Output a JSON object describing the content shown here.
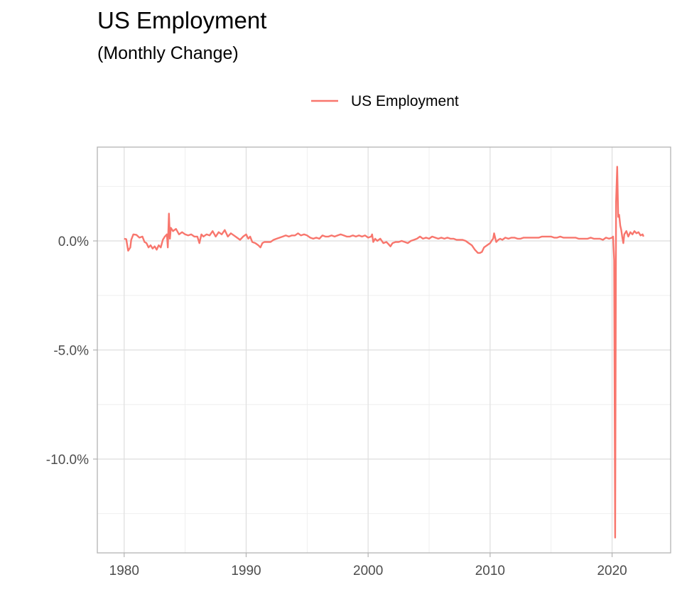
{
  "chart_data": {
    "type": "line",
    "title": "US Employment",
    "subtitle": "(Monthly Change)",
    "xlabel": "",
    "ylabel": "",
    "xlim": [
      1977.8,
      2024.8
    ],
    "ylim": [
      -14.3,
      4.3
    ],
    "x_ticks": [
      {
        "value": 1980,
        "label": "1980"
      },
      {
        "value": 1990,
        "label": "1990"
      },
      {
        "value": 2000,
        "label": "2000"
      },
      {
        "value": 2010,
        "label": "2010"
      },
      {
        "value": 2020,
        "label": "2020"
      }
    ],
    "y_ticks": [
      {
        "value": 0,
        "label": "0.0%"
      },
      {
        "value": -5,
        "label": "-5.0%"
      },
      {
        "value": -10,
        "label": "-10.0%"
      }
    ],
    "x_minor_ticks": [
      1985,
      1995,
      2005,
      2015
    ],
    "y_minor_ticks": [
      2.5,
      -2.5,
      -7.5,
      -12.5
    ],
    "grid": true,
    "legend_position": "top",
    "series": [
      {
        "name": "US Employment",
        "color": "#F8766D",
        "points": [
          [
            1980.0,
            0.1
          ],
          [
            1980.17,
            0.08
          ],
          [
            1980.33,
            -0.45
          ],
          [
            1980.5,
            -0.3
          ],
          [
            1980.58,
            0.05
          ],
          [
            1980.75,
            0.3
          ],
          [
            1981.0,
            0.28
          ],
          [
            1981.25,
            0.15
          ],
          [
            1981.5,
            0.2
          ],
          [
            1981.67,
            -0.05
          ],
          [
            1981.83,
            -0.1
          ],
          [
            1982.0,
            -0.3
          ],
          [
            1982.17,
            -0.2
          ],
          [
            1982.33,
            -0.35
          ],
          [
            1982.5,
            -0.25
          ],
          [
            1982.67,
            -0.4
          ],
          [
            1982.83,
            -0.2
          ],
          [
            1983.0,
            -0.3
          ],
          [
            1983.17,
            0.05
          ],
          [
            1983.33,
            0.2
          ],
          [
            1983.5,
            0.3
          ],
          [
            1983.58,
            -0.3
          ],
          [
            1983.67,
            1.25
          ],
          [
            1983.75,
            0.1
          ],
          [
            1983.83,
            0.6
          ],
          [
            1984.0,
            0.45
          ],
          [
            1984.25,
            0.55
          ],
          [
            1984.5,
            0.3
          ],
          [
            1984.75,
            0.4
          ],
          [
            1985.0,
            0.3
          ],
          [
            1985.25,
            0.25
          ],
          [
            1985.5,
            0.3
          ],
          [
            1985.75,
            0.2
          ],
          [
            1986.0,
            0.2
          ],
          [
            1986.17,
            -0.1
          ],
          [
            1986.33,
            0.3
          ],
          [
            1986.5,
            0.2
          ],
          [
            1986.75,
            0.3
          ],
          [
            1987.0,
            0.25
          ],
          [
            1987.25,
            0.45
          ],
          [
            1987.5,
            0.2
          ],
          [
            1987.75,
            0.4
          ],
          [
            1988.0,
            0.3
          ],
          [
            1988.25,
            0.5
          ],
          [
            1988.5,
            0.2
          ],
          [
            1988.75,
            0.35
          ],
          [
            1989.0,
            0.25
          ],
          [
            1989.25,
            0.15
          ],
          [
            1989.5,
            0.05
          ],
          [
            1989.75,
            0.2
          ],
          [
            1990.0,
            0.3
          ],
          [
            1990.17,
            0.1
          ],
          [
            1990.33,
            0.2
          ],
          [
            1990.5,
            -0.05
          ],
          [
            1990.75,
            -0.1
          ],
          [
            1991.0,
            -0.2
          ],
          [
            1991.17,
            -0.3
          ],
          [
            1991.33,
            -0.1
          ],
          [
            1991.5,
            -0.05
          ],
          [
            1991.75,
            -0.05
          ],
          [
            1992.0,
            -0.05
          ],
          [
            1992.25,
            0.05
          ],
          [
            1992.5,
            0.1
          ],
          [
            1992.75,
            0.15
          ],
          [
            1993.0,
            0.2
          ],
          [
            1993.25,
            0.25
          ],
          [
            1993.5,
            0.2
          ],
          [
            1993.75,
            0.25
          ],
          [
            1994.0,
            0.25
          ],
          [
            1994.25,
            0.35
          ],
          [
            1994.5,
            0.25
          ],
          [
            1994.75,
            0.3
          ],
          [
            1995.0,
            0.25
          ],
          [
            1995.25,
            0.15
          ],
          [
            1995.5,
            0.1
          ],
          [
            1995.75,
            0.15
          ],
          [
            1996.0,
            0.1
          ],
          [
            1996.25,
            0.25
          ],
          [
            1996.5,
            0.2
          ],
          [
            1996.75,
            0.2
          ],
          [
            1997.0,
            0.25
          ],
          [
            1997.25,
            0.2
          ],
          [
            1997.5,
            0.25
          ],
          [
            1997.75,
            0.3
          ],
          [
            1998.0,
            0.25
          ],
          [
            1998.25,
            0.2
          ],
          [
            1998.5,
            0.2
          ],
          [
            1998.75,
            0.25
          ],
          [
            1999.0,
            0.2
          ],
          [
            1999.25,
            0.25
          ],
          [
            1999.5,
            0.2
          ],
          [
            1999.75,
            0.25
          ],
          [
            2000.0,
            0.15
          ],
          [
            2000.25,
            0.2
          ],
          [
            2000.33,
            0.3
          ],
          [
            2000.42,
            -0.05
          ],
          [
            2000.58,
            0.1
          ],
          [
            2000.75,
            0.0
          ],
          [
            2001.0,
            0.1
          ],
          [
            2001.25,
            -0.1
          ],
          [
            2001.5,
            -0.05
          ],
          [
            2001.67,
            -0.15
          ],
          [
            2001.83,
            -0.25
          ],
          [
            2002.0,
            -0.1
          ],
          [
            2002.25,
            -0.05
          ],
          [
            2002.5,
            -0.05
          ],
          [
            2002.75,
            0.0
          ],
          [
            2003.0,
            -0.05
          ],
          [
            2003.25,
            -0.1
          ],
          [
            2003.5,
            0.0
          ],
          [
            2003.75,
            0.05
          ],
          [
            2004.0,
            0.1
          ],
          [
            2004.25,
            0.2
          ],
          [
            2004.5,
            0.1
          ],
          [
            2004.75,
            0.15
          ],
          [
            2005.0,
            0.1
          ],
          [
            2005.25,
            0.2
          ],
          [
            2005.5,
            0.15
          ],
          [
            2005.75,
            0.1
          ],
          [
            2006.0,
            0.15
          ],
          [
            2006.25,
            0.1
          ],
          [
            2006.5,
            0.15
          ],
          [
            2006.75,
            0.1
          ],
          [
            2007.0,
            0.1
          ],
          [
            2007.25,
            0.05
          ],
          [
            2007.5,
            0.05
          ],
          [
            2007.75,
            0.05
          ],
          [
            2008.0,
            0.0
          ],
          [
            2008.25,
            -0.1
          ],
          [
            2008.5,
            -0.2
          ],
          [
            2008.75,
            -0.4
          ],
          [
            2009.0,
            -0.55
          ],
          [
            2009.17,
            -0.55
          ],
          [
            2009.33,
            -0.5
          ],
          [
            2009.5,
            -0.3
          ],
          [
            2009.75,
            -0.2
          ],
          [
            2010.0,
            -0.1
          ],
          [
            2010.17,
            0.05
          ],
          [
            2010.25,
            0.1
          ],
          [
            2010.33,
            0.35
          ],
          [
            2010.5,
            -0.05
          ],
          [
            2010.67,
            0.05
          ],
          [
            2010.83,
            0.1
          ],
          [
            2011.0,
            0.05
          ],
          [
            2011.25,
            0.15
          ],
          [
            2011.5,
            0.1
          ],
          [
            2011.75,
            0.15
          ],
          [
            2012.0,
            0.15
          ],
          [
            2012.25,
            0.1
          ],
          [
            2012.5,
            0.1
          ],
          [
            2012.75,
            0.15
          ],
          [
            2013.0,
            0.15
          ],
          [
            2013.25,
            0.15
          ],
          [
            2013.5,
            0.15
          ],
          [
            2013.75,
            0.15
          ],
          [
            2014.0,
            0.15
          ],
          [
            2014.25,
            0.2
          ],
          [
            2014.5,
            0.2
          ],
          [
            2014.75,
            0.2
          ],
          [
            2015.0,
            0.2
          ],
          [
            2015.25,
            0.15
          ],
          [
            2015.5,
            0.15
          ],
          [
            2015.75,
            0.2
          ],
          [
            2016.0,
            0.15
          ],
          [
            2016.25,
            0.15
          ],
          [
            2016.5,
            0.15
          ],
          [
            2016.75,
            0.15
          ],
          [
            2017.0,
            0.15
          ],
          [
            2017.25,
            0.1
          ],
          [
            2017.5,
            0.1
          ],
          [
            2017.75,
            0.1
          ],
          [
            2018.0,
            0.1
          ],
          [
            2018.25,
            0.15
          ],
          [
            2018.5,
            0.1
          ],
          [
            2018.75,
            0.1
          ],
          [
            2019.0,
            0.1
          ],
          [
            2019.25,
            0.05
          ],
          [
            2019.5,
            0.15
          ],
          [
            2019.75,
            0.1
          ],
          [
            2020.0,
            0.15
          ],
          [
            2020.08,
            0.2
          ],
          [
            2020.17,
            -0.9
          ],
          [
            2020.25,
            -13.6
          ],
          [
            2020.33,
            1.8
          ],
          [
            2020.42,
            3.4
          ],
          [
            2020.5,
            1.1
          ],
          [
            2020.58,
            1.2
          ],
          [
            2020.67,
            0.7
          ],
          [
            2020.75,
            0.5
          ],
          [
            2020.83,
            0.2
          ],
          [
            2020.92,
            -0.1
          ],
          [
            2021.0,
            0.3
          ],
          [
            2021.17,
            0.45
          ],
          [
            2021.33,
            0.2
          ],
          [
            2021.5,
            0.4
          ],
          [
            2021.67,
            0.3
          ],
          [
            2021.83,
            0.45
          ],
          [
            2022.0,
            0.35
          ],
          [
            2022.17,
            0.4
          ],
          [
            2022.33,
            0.25
          ],
          [
            2022.5,
            0.3
          ],
          [
            2022.58,
            0.2
          ]
        ]
      }
    ]
  }
}
